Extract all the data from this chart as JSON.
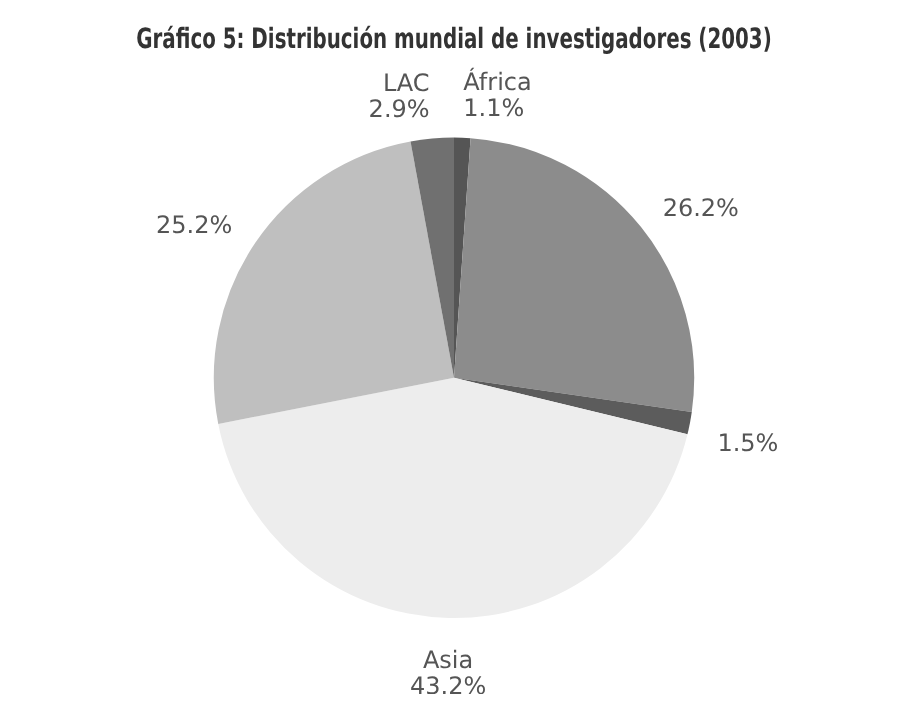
{
  "chart_data": {
    "type": "pie",
    "title": "Gráfico 5: Distribución mundial de investigadores (2003)",
    "categories": [
      "África",
      null,
      null,
      "Asia",
      null,
      "LAC"
    ],
    "values": [
      1.1,
      26.2,
      1.5,
      43.2,
      25.2,
      2.9
    ],
    "value_labels": [
      "1.1%",
      "26.2%",
      "1.5%",
      "43.2%",
      "25.2%",
      "2.9%"
    ],
    "colors": [
      "#555555",
      "#8c8c8c",
      "#5c5c5c",
      "#ededed",
      "#bfbfbf",
      "#707070"
    ],
    "legend": false
  }
}
